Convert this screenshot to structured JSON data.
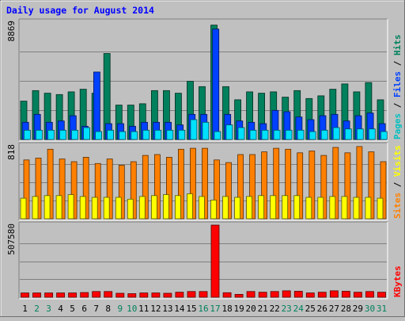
{
  "chart_data": {
    "type": "bar",
    "title": "Daily usage for August 2014",
    "categories": [
      "1",
      "2",
      "3",
      "4",
      "5",
      "6",
      "7",
      "8",
      "9",
      "10",
      "11",
      "12",
      "13",
      "14",
      "15",
      "16",
      "17",
      "18",
      "19",
      "20",
      "21",
      "22",
      "23",
      "24",
      "25",
      "26",
      "27",
      "28",
      "29",
      "30",
      "31"
    ],
    "weekend_days": [
      "2",
      "3",
      "9",
      "10",
      "16",
      "17",
      "23",
      "24",
      "30",
      "31"
    ],
    "panels": [
      {
        "label_parts": [
          "Pages",
          " / ",
          "Files",
          " / ",
          "Hits"
        ],
        "label_colors": [
          "#00c0c0",
          "#000000",
          "#0040ff",
          "#000000",
          "#00805c"
        ],
        "ymax_label": "8869",
        "ymax": 8869,
        "series": [
          {
            "name": "Hits",
            "color": "#00805c",
            "values": [
              2900,
              3700,
              3500,
              3400,
              3600,
              3800,
              3500,
              6500,
              2600,
              2600,
              2700,
              3700,
              3700,
              3500,
              4400,
              4000,
              8650,
              4000,
              3000,
              3600,
              3500,
              3600,
              3200,
              3700,
              3100,
              3300,
              3800,
              4200,
              3600,
              4300,
              3000
            ]
          },
          {
            "name": "Files",
            "color": "#0040ff",
            "values": [
              1300,
              1900,
              1300,
              1400,
              1800,
              1000,
              5100,
              1200,
              1200,
              1000,
              1300,
              1300,
              1300,
              1100,
              1900,
              1900,
              8350,
              1900,
              1400,
              1300,
              1200,
              2200,
              2100,
              1700,
              1500,
              1800,
              1900,
              1400,
              1800,
              2000,
              1200
            ]
          },
          {
            "name": "Pages",
            "color": "#00e0ff",
            "values": [
              700,
              700,
              700,
              700,
              700,
              900,
              600,
              700,
              600,
              600,
              700,
              700,
              700,
              700,
              1500,
              1300,
              600,
              1100,
              900,
              700,
              700,
              700,
              700,
              700,
              600,
              700,
              900,
              800,
              800,
              800,
              600
            ]
          }
        ]
      },
      {
        "label_parts": [
          "Sites",
          " / ",
          "Visits"
        ],
        "label_colors": [
          "#ff8000",
          "#000000",
          "#ffff00"
        ],
        "ymax_label": "818",
        "ymax": 818,
        "series": [
          {
            "name": "Sites",
            "color": "#ff8000",
            "values": [
              660,
              680,
              780,
              670,
              640,
              690,
              620,
              670,
              600,
              640,
              710,
              720,
              690,
              780,
              790,
              790,
              660,
              630,
              720,
              720,
              750,
              790,
              780,
              740,
              760,
              710,
              800,
              740,
              810,
              750,
              640
            ]
          },
          {
            "name": "Visits",
            "color": "#ffff00",
            "values": [
              230,
              250,
              260,
              260,
              270,
              250,
              240,
              240,
              240,
              220,
              250,
              260,
              270,
              260,
              280,
              250,
              210,
              250,
              240,
              250,
              260,
              260,
              260,
              260,
              240,
              240,
              250,
              250,
              240,
              240,
              230
            ]
          }
        ]
      },
      {
        "label_parts": [
          "KBytes"
        ],
        "label_colors": [
          "#ff0000"
        ],
        "ymax_label": "507580",
        "ymax": 507580,
        "series": [
          {
            "name": "KBytes",
            "color": "#ff0000",
            "values": [
              30000,
              30000,
              30000,
              30000,
              30000,
              33000,
              40000,
              40000,
              28000,
              25000,
              30000,
              30000,
              28000,
              35000,
              40000,
              40000,
              507580,
              32000,
              20000,
              40000,
              35000,
              40000,
              45000,
              42000,
              30000,
              35000,
              45000,
              42000,
              35000,
              40000,
              35000
            ]
          }
        ]
      }
    ]
  }
}
